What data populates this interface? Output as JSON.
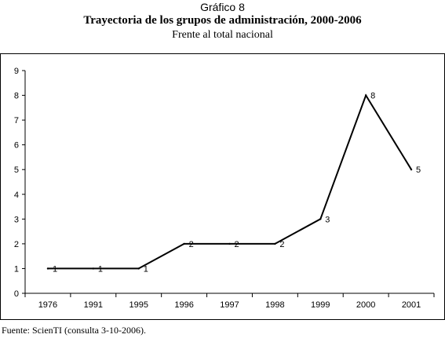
{
  "header": {
    "graphic_number": "Gráfico 8",
    "title": "Trayectoria de los grupos de administración, 2000-2006",
    "subtitle": "Frente al total nacional"
  },
  "source": "Fuente: ScienTI (consulta 3-10-2006).",
  "chart_data": {
    "type": "line",
    "categories": [
      "1976",
      "1991",
      "1995",
      "1996",
      "1997",
      "1998",
      "1999",
      "2000",
      "2001"
    ],
    "series": [
      {
        "values": [
          1,
          1,
          1,
          2,
          2,
          2,
          3,
          8,
          5
        ],
        "data_labels": [
          "1",
          "1",
          "1",
          "2",
          "2",
          "2",
          "3",
          "8",
          "5"
        ]
      }
    ],
    "ylim": [
      0,
      9
    ],
    "yticks": [
      "0",
      "1",
      "2",
      "3",
      "4",
      "5",
      "6",
      "7",
      "8",
      "9"
    ],
    "grid": false,
    "legend": "none",
    "line_color": "#000000"
  }
}
